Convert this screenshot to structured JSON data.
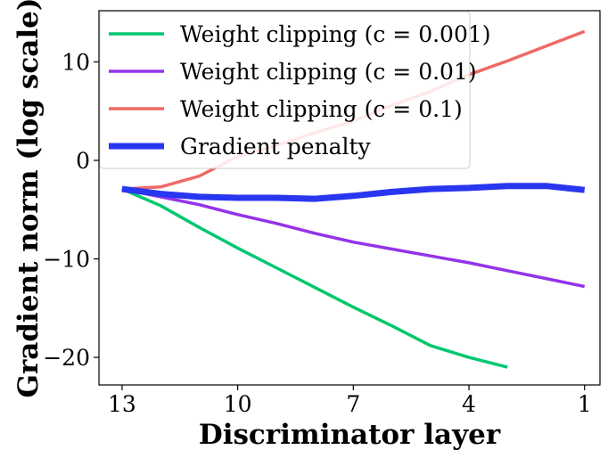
{
  "chart_data": {
    "type": "line",
    "title": "",
    "xlabel": "Discriminator layer",
    "ylabel": "Gradient norm (log scale)",
    "x_reversed": true,
    "xlim": [
      13.6,
      0.6
    ],
    "ylim": [
      -22.8,
      15.2
    ],
    "xticks": [
      13,
      10,
      7,
      4,
      1
    ],
    "yticks": [
      10,
      0,
      -10,
      -20
    ],
    "ytick_labels": [
      "10",
      "0",
      "−10",
      "−20"
    ],
    "grid": false,
    "legend_position": "upper-left",
    "series": [
      {
        "name": "Weight clipping (c = 0.001)",
        "color": "#00c770",
        "x": [
          13,
          12,
          11,
          10,
          9,
          8,
          7,
          6,
          5,
          4,
          3
        ],
        "y": [
          -2.9,
          -4.6,
          -6.8,
          -8.9,
          -10.9,
          -12.9,
          -14.9,
          -16.8,
          -18.8,
          -20.0,
          -21.0
        ]
      },
      {
        "name": "Weight clipping (c = 0.01)",
        "color": "#9433e8",
        "x": [
          13,
          12,
          11,
          10,
          9,
          8,
          7,
          6,
          5,
          4,
          3,
          2,
          1
        ],
        "y": [
          -2.9,
          -3.7,
          -4.5,
          -5.5,
          -6.4,
          -7.4,
          -8.3,
          -9.0,
          -9.7,
          -10.4,
          -11.2,
          -12.0,
          -12.8
        ]
      },
      {
        "name": "Weight clipping (c = 0.1)",
        "color": "#ee6a66",
        "x": [
          13,
          12,
          11,
          10,
          9,
          8,
          7,
          6,
          5,
          4,
          3,
          2,
          1
        ],
        "y": [
          -2.9,
          -2.7,
          -1.6,
          0.4,
          1.5,
          2.8,
          4.0,
          5.6,
          7.0,
          8.7,
          10.1,
          11.6,
          13.1
        ]
      },
      {
        "name": "Gradient penalty",
        "color": "#2936f0",
        "x": [
          13,
          12,
          11,
          10,
          9,
          8,
          7,
          6,
          5,
          4,
          3,
          2,
          1
        ],
        "y": [
          -2.9,
          -3.4,
          -3.7,
          -3.8,
          -3.8,
          -3.9,
          -3.6,
          -3.2,
          -2.9,
          -2.8,
          -2.6,
          -2.6,
          -3.0
        ]
      }
    ]
  }
}
